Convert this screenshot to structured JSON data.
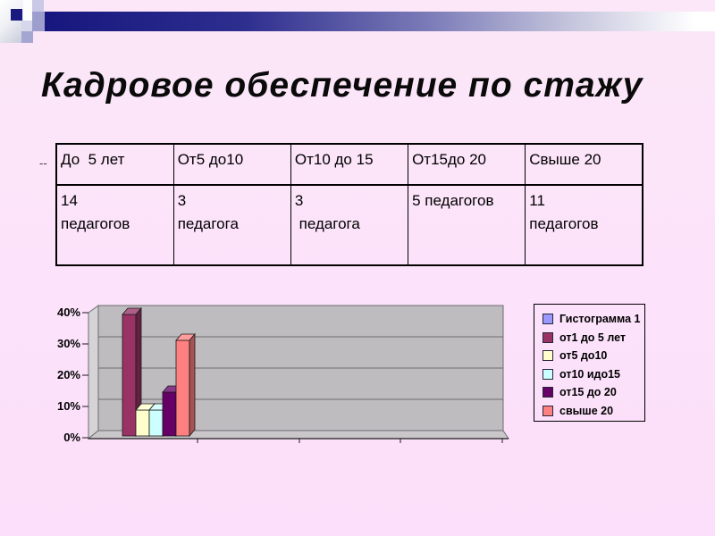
{
  "slide": {
    "title": "Кадровое обеспечение по стажу",
    "stray_mark": "--"
  },
  "theme": {
    "background": "#fce2fa",
    "header_bar_dark": "#16167e",
    "header_bar_light": "#ffffff",
    "deco_square_navy": "#191980",
    "deco_square_lavender": "#9e9ece"
  },
  "table": {
    "headers": [
      "До  5 лет",
      "От5 до10",
      "От10 до 15",
      "От15до 20",
      "Свыше 20"
    ],
    "cells": [
      "14\nпедагогов",
      "3\nпедагога",
      "3\n педагога",
      "5 педагогов",
      "11\nпедагогов"
    ]
  },
  "chart_data": {
    "type": "bar",
    "style": "3d-column",
    "title": "",
    "xlabel": "",
    "ylabel": "",
    "ylim": [
      0,
      40
    ],
    "yticks": [
      "0%",
      "10%",
      "20%",
      "30%",
      "40%"
    ],
    "grid": true,
    "legend_position": "right",
    "wall_color": "#bfbcc0",
    "floor_color": "#cac7cb",
    "side_wall_color": "#d6d3d7",
    "gridline_color": "#6f6c70",
    "categories": [
      "",
      "",
      "",
      ""
    ],
    "note": "six series plotted in first category slot only; values are percent of 36 teachers",
    "series": [
      {
        "name": "Гистограмма 1",
        "color": "#9999ff",
        "value": 0
      },
      {
        "name": "от1 до 5 лет",
        "color": "#993366",
        "value": 38.9
      },
      {
        "name": "от5 до10",
        "color": "#ffffcc",
        "value": 8.3
      },
      {
        "name": "от10 идо15",
        "color": "#ccffff",
        "value": 8.3
      },
      {
        "name": "от15 до 20",
        "color": "#660066",
        "value": 13.9
      },
      {
        "name": "свыше 20",
        "color": "#ff8080",
        "value": 30.6
      }
    ]
  }
}
